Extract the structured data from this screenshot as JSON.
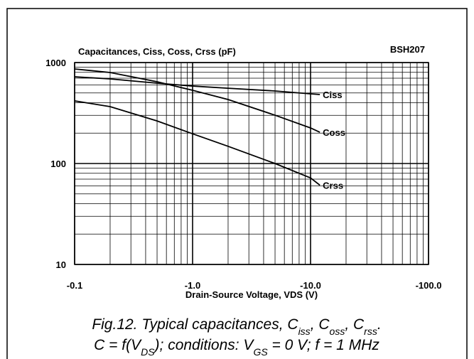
{
  "chart_data": {
    "type": "line",
    "title": "Capacitances, Ciss, Coss, Crss (pF)",
    "part": "BSH207",
    "x_label": "Drain-Source Voltage, VDS (V)",
    "log_x": true,
    "log_y": true,
    "grid": true,
    "x": [
      -0.1,
      -0.2,
      -0.5,
      -1,
      -2,
      -5,
      -10,
      -12
    ],
    "series": [
      {
        "name": "Ciss",
        "color": "#000000",
        "values": [
          723,
          689,
          625,
          585,
          557,
          523,
          490,
          482
        ]
      },
      {
        "name": "Coss",
        "color": "#000000",
        "values": [
          864,
          797,
          646,
          531,
          430,
          301,
          225,
          204
        ]
      },
      {
        "name": "Crss",
        "color": "#000000",
        "values": [
          417,
          366,
          264,
          197,
          148,
          100,
          72,
          61
        ]
      }
    ],
    "xlim": [
      -0.1,
      -100
    ],
    "xticks": [
      -0.1,
      {
        "value": -1,
        "label": "-1.0"
      },
      {
        "value": -10,
        "label": "-10.0"
      },
      {
        "value": -100,
        "label": "-100.0"
      }
    ],
    "xminor": [
      -0.2,
      -0.3,
      -0.4,
      -0.5,
      -0.6,
      -0.7,
      -0.8,
      -0.9,
      -2,
      -3,
      -4,
      -5,
      -6,
      -7,
      -8,
      -9,
      -20,
      -30,
      -40,
      -50,
      -60,
      -70,
      -80,
      -90
    ],
    "ylim": [
      10,
      1000
    ],
    "yticks": [
      10,
      100,
      1000
    ],
    "yminor": [
      20,
      30,
      40,
      50,
      60,
      70,
      80,
      90,
      200,
      300,
      400,
      500,
      600,
      700,
      800,
      900
    ],
    "caption": [
      [
        {
          "text": "Fig.12.   Typical capacitances, C"
        },
        {
          "sub": "iss"
        },
        {
          "text": ", C"
        },
        {
          "sub": "oss"
        },
        {
          "text": ", C"
        },
        {
          "sub": "rss"
        },
        {
          "text": "."
        }
      ],
      [
        {
          "text": "C = f(V"
        },
        {
          "sub": "DS"
        },
        {
          "text": "); conditions: V"
        },
        {
          "sub": "GS"
        },
        {
          "text": " = 0 V; f = 1 MHz"
        }
      ]
    ]
  }
}
